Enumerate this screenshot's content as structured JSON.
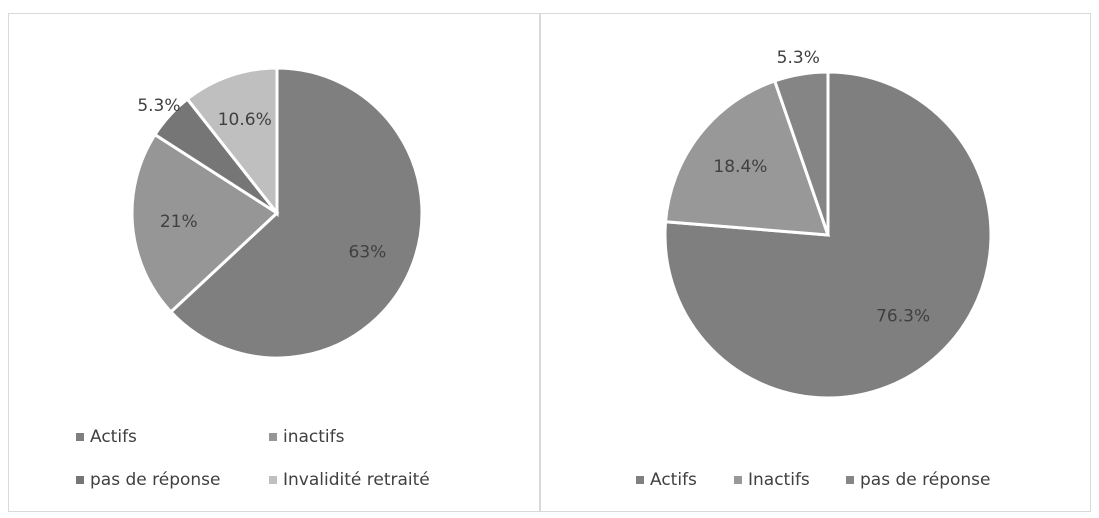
{
  "chart_data": [
    {
      "type": "pie",
      "categories": [
        "Actifs",
        "inactifs",
        "pas de réponse",
        "Invalidité retraité"
      ],
      "values": [
        63,
        21,
        5.3,
        10.6
      ],
      "value_labels": [
        "63%",
        "21%",
        "5.3%",
        "10.6%"
      ],
      "colors": [
        "#7f7f7f",
        "#969696",
        "#767676",
        "#bfbfbf"
      ]
    },
    {
      "type": "pie",
      "categories": [
        "Actifs",
        "Inactifs",
        "pas de réponse"
      ],
      "values": [
        76.3,
        18.4,
        5.3
      ],
      "value_labels": [
        "76.3%",
        "18.4%",
        "5.3%"
      ],
      "colors": [
        "#7f7f7f",
        "#989898",
        "#858585"
      ]
    }
  ]
}
